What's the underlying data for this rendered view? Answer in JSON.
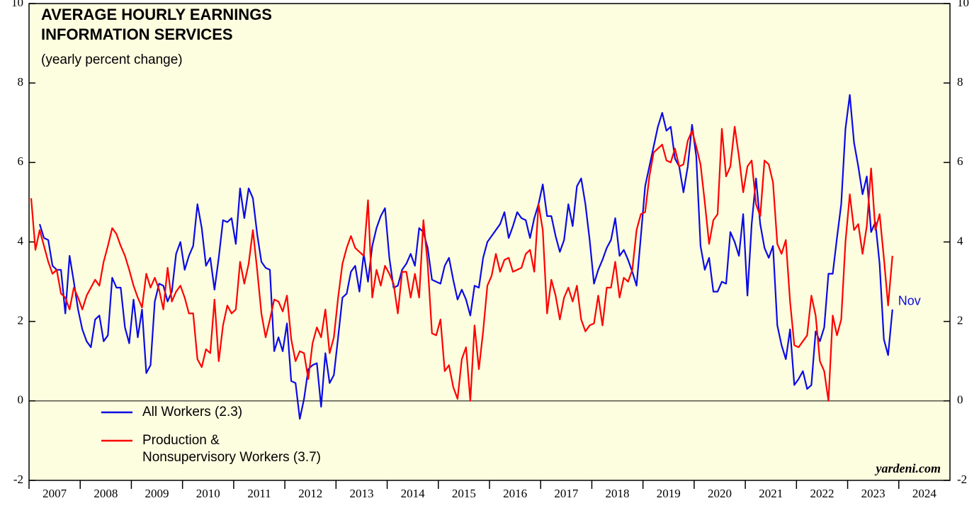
{
  "chart_data": {
    "type": "line",
    "title": "AVERAGE HOURLY EARNINGS",
    "title_line2": "INFORMATION SERVICES",
    "subtitle": "(yearly percent change)",
    "annotation": "Nov",
    "source": "yardeni.com",
    "legend": "bottom-left",
    "zero_line": true,
    "background": "#fdfde0",
    "x": [
      "2007-01",
      "2007-02",
      "2007-03",
      "2007-04",
      "2007-05",
      "2007-06",
      "2007-07",
      "2007-08",
      "2007-09",
      "2007-10",
      "2007-11",
      "2007-12",
      "2008-01",
      "2008-02",
      "2008-03",
      "2008-04",
      "2008-05",
      "2008-06",
      "2008-07",
      "2008-08",
      "2008-09",
      "2008-10",
      "2008-11",
      "2008-12",
      "2009-01",
      "2009-02",
      "2009-03",
      "2009-04",
      "2009-05",
      "2009-06",
      "2009-07",
      "2009-08",
      "2009-09",
      "2009-10",
      "2009-11",
      "2009-12",
      "2010-01",
      "2010-02",
      "2010-03",
      "2010-04",
      "2010-05",
      "2010-06",
      "2010-07",
      "2010-08",
      "2010-09",
      "2010-10",
      "2010-11",
      "2010-12",
      "2011-01",
      "2011-02",
      "2011-03",
      "2011-04",
      "2011-05",
      "2011-06",
      "2011-07",
      "2011-08",
      "2011-09",
      "2011-10",
      "2011-11",
      "2011-12",
      "2012-01",
      "2012-02",
      "2012-03",
      "2012-04",
      "2012-05",
      "2012-06",
      "2012-07",
      "2012-08",
      "2012-09",
      "2012-10",
      "2012-11",
      "2012-12",
      "2013-01",
      "2013-02",
      "2013-03",
      "2013-04",
      "2013-05",
      "2013-06",
      "2013-07",
      "2013-08",
      "2013-09",
      "2013-10",
      "2013-11",
      "2013-12",
      "2014-01",
      "2014-02",
      "2014-03",
      "2014-04",
      "2014-05",
      "2014-06",
      "2014-07",
      "2014-08",
      "2014-09",
      "2014-10",
      "2014-11",
      "2014-12",
      "2015-01",
      "2015-02",
      "2015-03",
      "2015-04",
      "2015-05",
      "2015-06",
      "2015-07",
      "2015-08",
      "2015-09",
      "2015-10",
      "2015-11",
      "2015-12",
      "2016-01",
      "2016-02",
      "2016-03",
      "2016-04",
      "2016-05",
      "2016-06",
      "2016-07",
      "2016-08",
      "2016-09",
      "2016-10",
      "2016-11",
      "2016-12",
      "2017-01",
      "2017-02",
      "2017-03",
      "2017-04",
      "2017-05",
      "2017-06",
      "2017-07",
      "2017-08",
      "2017-09",
      "2017-10",
      "2017-11",
      "2017-12",
      "2018-01",
      "2018-02",
      "2018-03",
      "2018-04",
      "2018-05",
      "2018-06",
      "2018-07",
      "2018-08",
      "2018-09",
      "2018-10",
      "2018-11",
      "2018-12",
      "2019-01",
      "2019-02",
      "2019-03",
      "2019-04",
      "2019-05",
      "2019-06",
      "2019-07",
      "2019-08",
      "2019-09",
      "2019-10",
      "2019-11",
      "2019-12",
      "2020-01",
      "2020-02",
      "2020-03",
      "2020-04",
      "2020-05",
      "2020-06",
      "2020-07",
      "2020-08",
      "2020-09",
      "2020-10",
      "2020-11",
      "2020-12",
      "2021-01",
      "2021-02",
      "2021-03",
      "2021-04",
      "2021-05",
      "2021-06",
      "2021-07",
      "2021-08",
      "2021-09",
      "2021-10",
      "2021-11",
      "2021-12",
      "2022-01",
      "2022-02",
      "2022-03",
      "2022-04",
      "2022-05",
      "2022-06",
      "2022-07",
      "2022-08",
      "2022-09",
      "2022-10",
      "2022-11",
      "2022-12",
      "2023-01",
      "2023-02",
      "2023-03",
      "2023-04",
      "2023-05",
      "2023-06",
      "2023-07",
      "2023-08",
      "2023-09",
      "2023-10",
      "2023-11"
    ],
    "series": [
      {
        "name": "All Workers (2.3)",
        "color": "#0a0ae6",
        "values": [
          null,
          null,
          4.45,
          4.1,
          4.05,
          3.4,
          3.3,
          3.3,
          2.2,
          3.65,
          3.0,
          2.3,
          1.8,
          1.5,
          1.35,
          2.05,
          2.15,
          1.5,
          1.65,
          3.1,
          2.85,
          2.85,
          1.85,
          1.45,
          2.55,
          1.6,
          2.3,
          0.7,
          0.9,
          2.5,
          2.95,
          2.9,
          2.5,
          2.75,
          3.7,
          4.0,
          3.3,
          3.65,
          3.9,
          4.95,
          4.35,
          3.4,
          3.6,
          2.8,
          3.6,
          4.55,
          4.5,
          4.6,
          3.95,
          5.35,
          4.6,
          5.35,
          5.1,
          4.2,
          3.5,
          3.35,
          3.3,
          1.25,
          1.6,
          1.25,
          1.95,
          0.5,
          0.45,
          -0.45,
          0.05,
          0.8,
          0.9,
          0.95,
          -0.15,
          1.2,
          0.45,
          0.65,
          1.6,
          2.6,
          2.7,
          3.25,
          3.4,
          2.75,
          3.7,
          3.0,
          3.9,
          4.35,
          4.65,
          4.85,
          3.6,
          2.85,
          2.9,
          3.3,
          3.45,
          3.7,
          3.4,
          4.35,
          4.25,
          3.85,
          3.05,
          3.0,
          2.95,
          3.4,
          3.6,
          3.05,
          2.55,
          2.8,
          2.55,
          2.15,
          2.9,
          2.85,
          3.6,
          4.0,
          4.15,
          4.3,
          4.45,
          4.75,
          4.1,
          4.4,
          4.75,
          4.6,
          4.55,
          4.1,
          4.6,
          4.95,
          5.45,
          4.65,
          4.65,
          4.15,
          3.75,
          4.05,
          4.95,
          4.4,
          5.4,
          5.6,
          4.95,
          4.05,
          2.95,
          3.3,
          3.55,
          3.85,
          4.05,
          4.6,
          3.65,
          3.8,
          3.55,
          3.25,
          2.9,
          4.15,
          5.4,
          5.9,
          6.4,
          6.9,
          7.25,
          6.8,
          6.9,
          6.1,
          5.9,
          5.25,
          5.9,
          6.95,
          6.15,
          3.9,
          3.3,
          3.6,
          2.75,
          2.75,
          3.0,
          2.95,
          4.25,
          4.0,
          3.65,
          4.7,
          2.65,
          4.45,
          5.6,
          4.45,
          3.85,
          3.6,
          3.9,
          1.9,
          1.4,
          1.05,
          1.8,
          0.4,
          0.55,
          0.75,
          0.3,
          0.4,
          1.75,
          1.5,
          1.85,
          3.2,
          3.2,
          4.1,
          4.95,
          6.85,
          7.7,
          6.5,
          5.9,
          5.2,
          5.65,
          4.25,
          4.5,
          3.45,
          1.55,
          1.15,
          2.3
        ]
      },
      {
        "name": "Production &\nNonsupervisory Workers (3.7)",
        "color": "#ff0000",
        "values": [
          5.1,
          3.8,
          4.3,
          3.9,
          3.5,
          3.2,
          3.3,
          2.7,
          2.6,
          2.3,
          2.85,
          2.6,
          2.3,
          2.65,
          2.85,
          3.05,
          2.9,
          3.5,
          3.9,
          4.35,
          4.2,
          3.9,
          3.65,
          3.3,
          2.9,
          2.6,
          2.35,
          3.2,
          2.85,
          3.1,
          2.8,
          2.3,
          3.35,
          2.5,
          2.75,
          2.9,
          2.6,
          2.2,
          2.2,
          1.05,
          0.85,
          1.3,
          1.2,
          2.55,
          1.0,
          1.9,
          2.4,
          2.2,
          2.3,
          3.5,
          2.95,
          3.45,
          4.3,
          3.3,
          2.2,
          1.6,
          2.05,
          2.55,
          2.5,
          2.25,
          2.65,
          1.55,
          1.0,
          1.25,
          1.2,
          0.55,
          1.45,
          1.85,
          1.6,
          2.3,
          1.2,
          1.6,
          2.6,
          3.45,
          3.85,
          4.15,
          3.85,
          3.75,
          3.65,
          5.05,
          2.6,
          3.3,
          2.9,
          3.4,
          3.2,
          2.95,
          2.2,
          3.25,
          3.25,
          2.6,
          3.2,
          2.6,
          4.55,
          3.45,
          1.7,
          1.65,
          2.05,
          0.75,
          0.9,
          0.35,
          0.05,
          1.05,
          1.35,
          0.0,
          1.9,
          0.8,
          1.75,
          2.9,
          3.15,
          3.7,
          3.25,
          3.55,
          3.6,
          3.25,
          3.3,
          3.35,
          3.7,
          3.8,
          3.25,
          4.95,
          4.3,
          2.2,
          3.05,
          2.65,
          2.05,
          2.6,
          2.85,
          2.5,
          2.9,
          2.05,
          1.75,
          1.9,
          1.95,
          2.65,
          1.9,
          2.85,
          2.85,
          3.5,
          2.6,
          3.1,
          3.0,
          3.3,
          4.3,
          4.7,
          4.75,
          5.65,
          6.25,
          6.35,
          6.45,
          6.05,
          6.0,
          6.35,
          5.9,
          5.95,
          6.55,
          6.8,
          6.4,
          5.95,
          5.0,
          3.95,
          4.55,
          4.7,
          6.85,
          5.65,
          5.9,
          6.9,
          6.15,
          5.25,
          5.9,
          6.05,
          4.95,
          4.65,
          6.05,
          5.95,
          5.5,
          3.95,
          3.7,
          4.05,
          2.5,
          1.4,
          1.35,
          1.5,
          1.65,
          2.65,
          2.15,
          1.0,
          0.75,
          0.0,
          2.15,
          1.65,
          2.05,
          4.0,
          5.2,
          4.3,
          4.45,
          3.7,
          4.4,
          5.85,
          4.3,
          4.7,
          3.6,
          2.4,
          3.65
        ]
      }
    ],
    "xlim": [
      2007,
      2025
    ],
    "xticks": [
      2007,
      2008,
      2009,
      2010,
      2011,
      2012,
      2013,
      2014,
      2015,
      2016,
      2017,
      2018,
      2019,
      2020,
      2021,
      2022,
      2023,
      2024
    ],
    "ylim": [
      -2,
      10
    ],
    "yticks": [
      -2,
      0,
      2,
      4,
      6,
      8,
      10
    ]
  }
}
